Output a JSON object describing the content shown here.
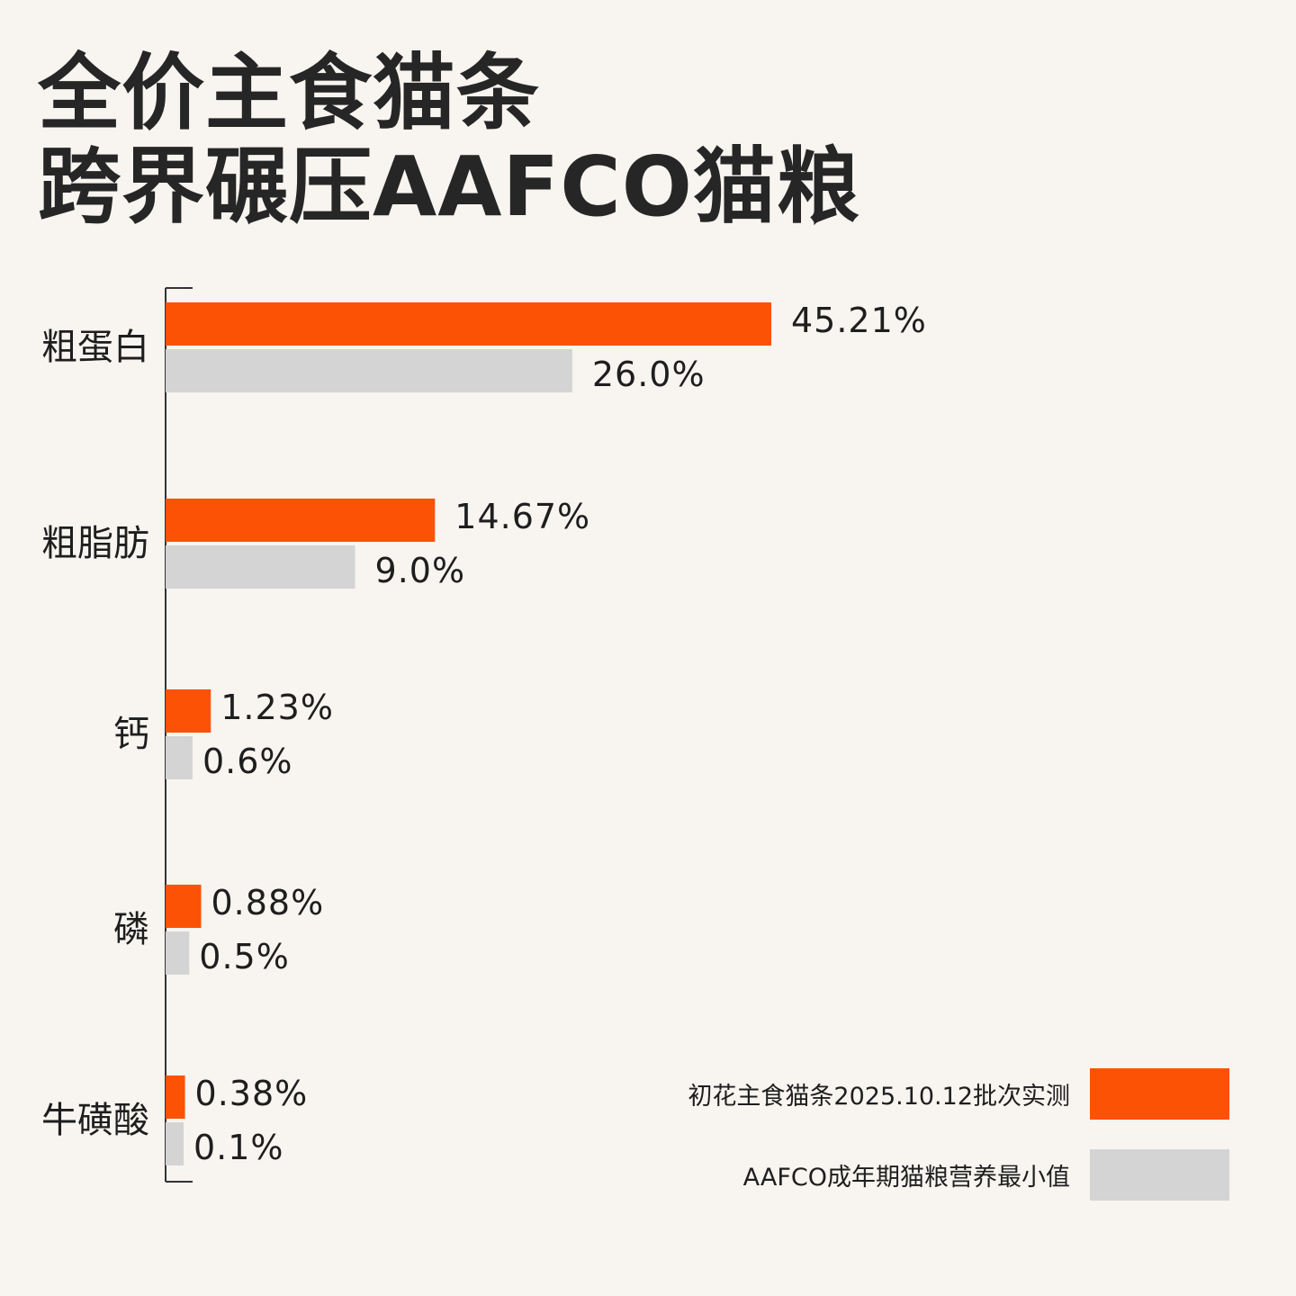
{
  "title_line1": "全价主食猫条",
  "title_line2": "跨界碾压AAFCO猫粮",
  "colors": {
    "background": "#f8f4f0",
    "measured": "#fb5205",
    "standard": "#d4d4d4",
    "axis": "#333333",
    "text": "#1e1e1e"
  },
  "chart_data": {
    "type": "bar",
    "orientation": "horizontal",
    "categories": [
      "粗蛋白",
      "粗脂肪",
      "钙",
      "磷",
      "牛磺酸"
    ],
    "series": [
      {
        "name": "初花主食猫条2025.10.12批次实测",
        "values": [
          45.21,
          14.67,
          1.23,
          0.88,
          0.38
        ],
        "labels": [
          "45.21%",
          "14.67%",
          "1.23%",
          "0.88%",
          "0.38%"
        ],
        "color": "#fb5205"
      },
      {
        "name": "AAFCO成年期猫粮营养最小值",
        "values": [
          26.0,
          9.0,
          0.6,
          0.5,
          0.1
        ],
        "labels": [
          "26.0%",
          "9.0%",
          "0.6%",
          "0.5%",
          "0.1%"
        ],
        "color": "#d4d4d4"
      }
    ],
    "unit": "%",
    "grid": false,
    "legend_position": "bottom-right",
    "scale_note": "bar lengths are not linear in value; small values are enlarged"
  }
}
